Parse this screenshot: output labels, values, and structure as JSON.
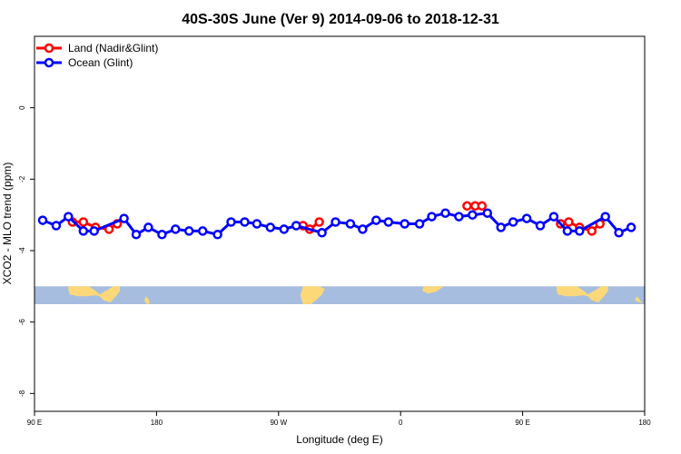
{
  "chart_data": {
    "type": "line",
    "title": "40S-30S June (Ver 9)   2014-09-06 to 2018-12-31",
    "xlabel": "Longitude (deg E)",
    "ylabel": "XCO2 - MLO trend (ppm)",
    "xlim": [
      90,
      540
    ],
    "ylim": [
      -8.5,
      2
    ],
    "x_ticks": [
      {
        "value": 90,
        "label": "90 E"
      },
      {
        "value": 180,
        "label": "180"
      },
      {
        "value": 270,
        "label": "90 W"
      },
      {
        "value": 360,
        "label": "0"
      },
      {
        "value": 450,
        "label": "90 E"
      },
      {
        "value": 540,
        "label": "180"
      }
    ],
    "y_ticks": [
      {
        "value": 0,
        "label": "0"
      },
      {
        "value": -2,
        "label": "-2"
      },
      {
        "value": -4,
        "label": "-4"
      },
      {
        "value": -6,
        "label": "-6"
      },
      {
        "value": -8,
        "label": "-8"
      }
    ],
    "grid": false,
    "legend_position": "top-left",
    "series": [
      {
        "name": "Land (Nadir&Glint)",
        "color": "#ff0000",
        "segments": [
          [
            [
              118,
              -3.2
            ],
            [
              126,
              -3.2
            ],
            [
              135,
              -3.35
            ],
            [
              145,
              -3.4
            ],
            [
              151,
              -3.25
            ]
          ],
          [
            [
              288,
              -3.3
            ],
            [
              293,
              -3.4
            ],
            [
              300,
              -3.2
            ]
          ],
          [
            [
              409,
              -2.75
            ],
            [
              415,
              -2.75
            ],
            [
              420,
              -2.75
            ]
          ],
          [
            [
              478,
              -3.25
            ],
            [
              484,
              -3.2
            ],
            [
              492,
              -3.35
            ],
            [
              501,
              -3.45
            ],
            [
              507,
              -3.25
            ]
          ]
        ]
      },
      {
        "name": "Ocean (Glint)",
        "color": "#0000ff",
        "segments": [
          [
            [
              96,
              -3.15
            ],
            [
              106,
              -3.3
            ],
            [
              115,
              -3.05
            ],
            [
              126,
              -3.45
            ],
            [
              134,
              -3.45
            ],
            [
              156,
              -3.1
            ],
            [
              165,
              -3.55
            ],
            [
              174,
              -3.35
            ],
            [
              184,
              -3.55
            ],
            [
              194,
              -3.4
            ],
            [
              204,
              -3.45
            ],
            [
              214,
              -3.45
            ],
            [
              225,
              -3.55
            ],
            [
              235,
              -3.2
            ],
            [
              245,
              -3.2
            ],
            [
              254,
              -3.25
            ],
            [
              264,
              -3.35
            ],
            [
              274,
              -3.4
            ],
            [
              283,
              -3.3
            ],
            [
              302,
              -3.5
            ],
            [
              312,
              -3.2
            ],
            [
              323,
              -3.25
            ],
            [
              332,
              -3.4
            ],
            [
              342,
              -3.15
            ],
            [
              351,
              -3.2
            ],
            [
              363,
              -3.25
            ],
            [
              374,
              -3.25
            ],
            [
              383,
              -3.05
            ],
            [
              393,
              -2.95
            ],
            [
              403,
              -3.05
            ],
            [
              413,
              -3.0
            ],
            [
              424,
              -2.95
            ],
            [
              434,
              -3.35
            ],
            [
              443,
              -3.2
            ],
            [
              453,
              -3.1
            ],
            [
              463,
              -3.3
            ],
            [
              473,
              -3.05
            ],
            [
              483,
              -3.45
            ],
            [
              492,
              -3.45
            ],
            [
              511,
              -3.05
            ],
            [
              521,
              -3.5
            ],
            [
              530,
              -3.35
            ]
          ]
        ]
      }
    ],
    "map_strip": {
      "ymin": -5.5,
      "ymax": -5.0,
      "ocean_color": "#a7bde0",
      "land_color": "#fcd878"
    }
  }
}
